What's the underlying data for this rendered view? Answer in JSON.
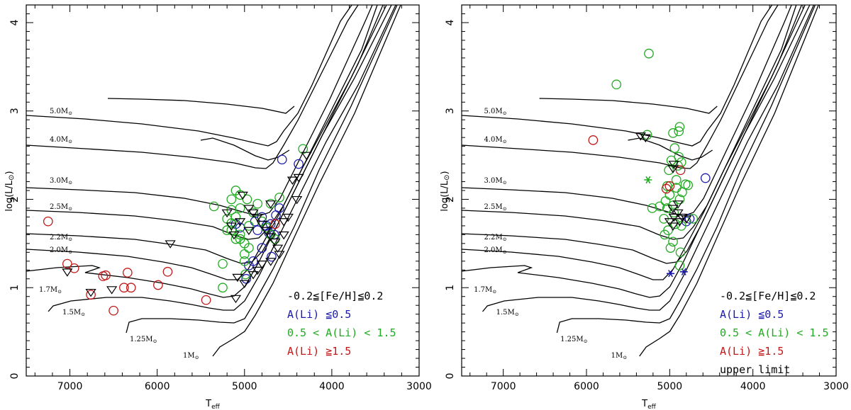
{
  "colors": {
    "low_li": "#1a1aa8",
    "mid_li": "#22aa22",
    "high_li": "#c01818",
    "upper": "#000000",
    "track": "#000000"
  },
  "chart_data": [
    {
      "type": "scatter",
      "panel": "left",
      "xlabel": "T",
      "xlabel_sub": "eff",
      "ylabel": "log(L/L",
      "ylabel_tail": ")",
      "xlim": [
        7500,
        3000
      ],
      "ylim": [
        0,
        4.2
      ],
      "x_ticks": [
        "7000",
        "6000",
        "5000",
        "4000",
        "3000"
      ],
      "y_ticks": [
        "0",
        "1",
        "2",
        "3",
        "4"
      ],
      "legend": [
        "-0.2≦[Fe/H]≦0.2",
        "A(Li) ≦0.5",
        "0.5 < A(Li) < 1.5",
        "A(Li) ≧1.5"
      ],
      "mass_labels": [
        "5.0M",
        "4.0M",
        "3.0M",
        "2.5M",
        "2.2M",
        "2.0M",
        "1.7M",
        "1.5M",
        "1.25M",
        "1M"
      ],
      "series": [
        {
          "name": "A(Li) ≤ 0.5",
          "marker": "circle",
          "color_key": "low_li",
          "points": [
            [
              4570,
              2.45
            ],
            [
              4380,
              2.4
            ],
            [
              4640,
              1.82
            ],
            [
              4700,
              1.72
            ],
            [
              4800,
              1.8
            ],
            [
              4750,
              1.7
            ],
            [
              4850,
              1.65
            ],
            [
              4660,
              1.6
            ],
            [
              4900,
              1.3
            ],
            [
              4980,
              1.1
            ],
            [
              4950,
              1.25
            ],
            [
              4690,
              1.35
            ],
            [
              4800,
              1.45
            ],
            [
              5050,
              1.68
            ],
            [
              4720,
              1.62
            ],
            [
              4880,
              1.75
            ],
            [
              4600,
              1.9
            ],
            [
              5100,
              1.72
            ]
          ]
        },
        {
          "name": "0.5 < A(Li) < 1.5",
          "marker": "circle",
          "color_key": "mid_li",
          "points": [
            [
              4330,
              2.57
            ],
            [
              5100,
              2.1
            ],
            [
              5050,
              2.05
            ],
            [
              4970,
              2.0
            ],
            [
              5150,
              2.0
            ],
            [
              5150,
              1.88
            ],
            [
              5350,
              1.92
            ],
            [
              5200,
              1.78
            ],
            [
              5150,
              1.73
            ],
            [
              5150,
              1.65
            ],
            [
              5050,
              1.6
            ],
            [
              5100,
              1.55
            ],
            [
              5000,
              1.5
            ],
            [
              4950,
              1.45
            ],
            [
              5050,
              1.55
            ],
            [
              5000,
              1.38
            ],
            [
              5000,
              1.3
            ],
            [
              4990,
              1.15
            ],
            [
              5250,
              1.0
            ],
            [
              5250,
              1.27
            ],
            [
              4900,
              1.85
            ],
            [
              4850,
              1.95
            ],
            [
              4800,
              1.75
            ],
            [
              4750,
              1.68
            ],
            [
              4700,
              1.6
            ],
            [
              4650,
              1.55
            ],
            [
              4700,
              1.95
            ],
            [
              5100,
              1.8
            ],
            [
              4950,
              1.7
            ],
            [
              4600,
              2.02
            ],
            [
              5200,
              1.65
            ],
            [
              5050,
              1.9
            ]
          ]
        },
        {
          "name": "A(Li) ≥ 1.5",
          "marker": "circle",
          "color_key": "high_li",
          "points": [
            [
              7250,
              1.75
            ],
            [
              7030,
              1.27
            ],
            [
              6950,
              1.22
            ],
            [
              6590,
              1.14
            ],
            [
              6620,
              1.13
            ],
            [
              6340,
              1.17
            ],
            [
              5880,
              1.18
            ],
            [
              6760,
              0.92
            ],
            [
              6380,
              1.0
            ],
            [
              6300,
              1.0
            ],
            [
              5990,
              1.03
            ],
            [
              6500,
              0.74
            ],
            [
              5440,
              0.86
            ],
            [
              4650,
              1.72
            ]
          ]
        },
        {
          "name": "upper limit",
          "marker": "triangle",
          "color_key": "upper",
          "points": [
            [
              4290,
              2.5
            ],
            [
              4380,
              2.25
            ],
            [
              4450,
              2.22
            ],
            [
              4400,
              2.0
            ],
            [
              5020,
              2.05
            ],
            [
              4950,
              1.9
            ],
            [
              5200,
              1.85
            ],
            [
              5150,
              1.7
            ],
            [
              5120,
              1.6
            ],
            [
              5050,
              1.75
            ],
            [
              4900,
              1.85
            ],
            [
              4850,
              1.8
            ],
            [
              4800,
              1.72
            ],
            [
              4750,
              1.65
            ],
            [
              4700,
              1.58
            ],
            [
              4650,
              1.52
            ],
            [
              4620,
              1.45
            ],
            [
              4600,
              1.38
            ],
            [
              4700,
              1.3
            ],
            [
              4800,
              1.27
            ],
            [
              4850,
              1.2
            ],
            [
              4900,
              1.15
            ],
            [
              5080,
              1.12
            ],
            [
              5000,
              1.05
            ],
            [
              5100,
              0.88
            ],
            [
              5850,
              1.5
            ],
            [
              7030,
              1.18
            ],
            [
              6520,
              0.98
            ],
            [
              6760,
              0.95
            ],
            [
              4500,
              1.8
            ],
            [
              4550,
              1.75
            ],
            [
              4950,
              1.65
            ],
            [
              4700,
              1.95
            ],
            [
              4550,
              1.6
            ]
          ]
        }
      ]
    },
    {
      "type": "scatter",
      "panel": "right",
      "xlabel": "T",
      "xlabel_sub": "eff",
      "ylabel": "log(L/L",
      "ylabel_tail": ")",
      "xlim": [
        7500,
        3000
      ],
      "ylim": [
        0,
        4.2
      ],
      "x_ticks": [
        "7000",
        "6000",
        "5000",
        "4000",
        "3000"
      ],
      "y_ticks": [
        "0",
        "1",
        "2",
        "3",
        "4"
      ],
      "legend": [
        "-0.2≦[Fe/H]≦0.2",
        "A(Li) ≦0.5",
        "0.5 < A(Li) < 1.5",
        "A(Li) ≧1.5",
        "upper limit"
      ],
      "mass_labels": [
        "5.0M",
        "4.0M",
        "3.0M",
        "2.5M",
        "2.2M",
        "2.0M",
        "1.7M",
        "1.5M",
        "1.25M",
        "1M"
      ],
      "series": [
        {
          "name": "A(Li) ≤ 0.5",
          "marker": "circle",
          "color_key": "low_li",
          "points": [
            [
              4570,
              2.24
            ],
            [
              4760,
              1.78
            ],
            [
              4800,
              1.75
            ]
          ]
        },
        {
          "name": "A(Li) ≤ 0.5 stars",
          "marker": "star",
          "color_key": "low_li",
          "points": [
            [
              4990,
              1.16
            ],
            [
              4830,
              1.18
            ]
          ]
        },
        {
          "name": "0.5 < A(Li) < 1.5",
          "marker": "circle",
          "color_key": "mid_li",
          "points": [
            [
              5250,
              3.65
            ],
            [
              5640,
              3.3
            ],
            [
              4880,
              2.82
            ],
            [
              4890,
              2.77
            ],
            [
              4960,
              2.75
            ],
            [
              5270,
              2.73
            ],
            [
              4940,
              2.58
            ],
            [
              4890,
              2.48
            ],
            [
              4980,
              2.44
            ],
            [
              4900,
              2.38
            ],
            [
              4860,
              2.42
            ],
            [
              5010,
              2.33
            ],
            [
              4920,
              2.22
            ],
            [
              5030,
              2.15
            ],
            [
              4920,
              2.13
            ],
            [
              4850,
              2.08
            ],
            [
              5000,
              2.05
            ],
            [
              4880,
              2.0
            ],
            [
              5050,
              1.98
            ],
            [
              4960,
              1.93
            ],
            [
              5120,
              1.92
            ],
            [
              5030,
              1.9
            ],
            [
              5070,
              1.78
            ],
            [
              4930,
              1.72
            ],
            [
              5020,
              1.65
            ],
            [
              4860,
              1.7
            ],
            [
              5060,
              1.6
            ],
            [
              4960,
              1.52
            ],
            [
              4990,
              1.45
            ],
            [
              4870,
              1.4
            ],
            [
              4880,
              1.25
            ],
            [
              4720,
              1.78
            ],
            [
              5210,
              1.9
            ],
            [
              4780,
              2.16
            ],
            [
              4810,
              2.17
            ],
            [
              4950,
              1.85
            ]
          ]
        },
        {
          "name": "0.5 < A(Li) < 1.5 stars",
          "marker": "star",
          "color_key": "mid_li",
          "points": [
            [
              5260,
              2.22
            ]
          ]
        },
        {
          "name": "A(Li) ≥ 1.5",
          "marker": "circle",
          "color_key": "high_li",
          "points": [
            [
              5920,
              2.67
            ],
            [
              4870,
              2.33
            ],
            [
              5000,
              2.15
            ],
            [
              5040,
              2.12
            ]
          ]
        },
        {
          "name": "upper limit",
          "marker": "triangle",
          "color_key": "upper",
          "points": [
            [
              5350,
              2.72
            ],
            [
              5290,
              2.7
            ],
            [
              4950,
              2.4
            ],
            [
              4960,
              2.35
            ],
            [
              4960,
              1.9
            ],
            [
              4900,
              1.85
            ],
            [
              4850,
              1.8
            ],
            [
              4950,
              1.8
            ],
            [
              4880,
              1.75
            ],
            [
              4800,
              1.78
            ],
            [
              5000,
              1.75
            ],
            [
              4900,
              1.95
            ],
            [
              4960,
              1.7
            ]
          ]
        }
      ]
    }
  ]
}
